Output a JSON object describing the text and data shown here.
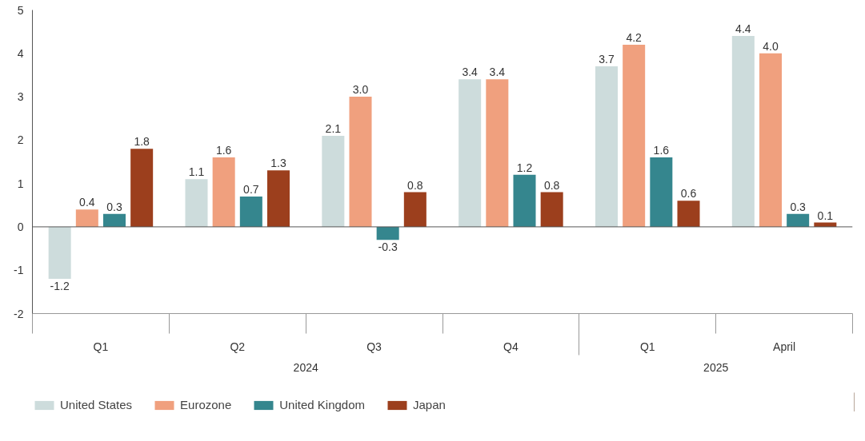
{
  "chart_data": {
    "type": "bar",
    "categories": [
      "Q1",
      "Q2",
      "Q3",
      "Q4",
      "Q1",
      "April"
    ],
    "series": [
      {
        "name": "United States",
        "color": "#cddcdc",
        "values": [
          -1.2,
          1.1,
          2.1,
          3.4,
          3.7,
          4.4
        ],
        "value_labels": [
          "-1.2",
          "1.1",
          "2.1",
          "3.4",
          "3.7",
          "4.4"
        ]
      },
      {
        "name": "Eurozone",
        "color": "#f0a07e",
        "values": [
          0.4,
          1.6,
          3.0,
          3.4,
          4.2,
          4.0
        ],
        "value_labels": [
          "0.4",
          "1.6",
          "3.0",
          "3.4",
          "4.2",
          "4.0"
        ]
      },
      {
        "name": "United Kingdom",
        "color": "#35868e",
        "values": [
          0.3,
          0.7,
          -0.3,
          1.2,
          1.6,
          0.3
        ],
        "value_labels": [
          "0.3",
          "0.7",
          "-0.3",
          "1.2",
          "1.6",
          "0.3"
        ]
      },
      {
        "name": "Japan",
        "color": "#9c3f1d",
        "values": [
          1.8,
          1.3,
          0.8,
          0.8,
          0.6,
          0.1
        ],
        "value_labels": [
          "1.8",
          "1.3",
          "0.8",
          "0.8",
          "0.6",
          "0.1"
        ]
      }
    ],
    "annotations": [
      "2024",
      "2025"
    ],
    "ylim": [
      -2,
      5
    ],
    "yticks": [
      -2,
      -1,
      0,
      1,
      2,
      3,
      4,
      5
    ],
    "legend": "bottom"
  }
}
